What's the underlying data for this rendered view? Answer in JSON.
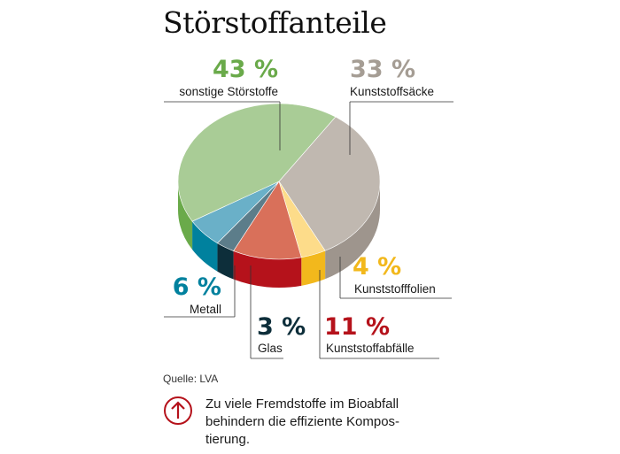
{
  "title": "Störstoffanteile",
  "source": "Quelle: LVA",
  "note": {
    "icon": "arrow-up-circle-icon",
    "text": "Zu viele Fremdstoffe im Bioabfall\nbehindern die effiziente Kompos-\ntierung."
  },
  "chart_data": {
    "type": "pie",
    "title": "Störstoffanteile",
    "slices": [
      {
        "label": "Kunststoffsäcke",
        "value": 33,
        "value_label": "33 %",
        "color": "#c0b8b0",
        "side_color": "#9e958d",
        "text_color": "#a59d94"
      },
      {
        "label": "Kunststofffolien",
        "value": 4,
        "value_label": "4 %",
        "color": "#fddc8a",
        "side_color": "#f2b81c",
        "text_color": "#f2b81c"
      },
      {
        "label": "Kunststoffabfälle",
        "value": 11,
        "value_label": "11 %",
        "color": "#d9705a",
        "side_color": "#b5121b",
        "text_color": "#b5121b"
      },
      {
        "label": "Glas",
        "value": 3,
        "value_label": "3 %",
        "color": "#5c7d8a",
        "side_color": "#0d2e3a",
        "text_color": "#0d2e3a"
      },
      {
        "label": "Metall",
        "value": 6,
        "value_label": "6 %",
        "color": "#6ab0c8",
        "side_color": "#00819e",
        "text_color": "#00819e"
      },
      {
        "label": "sonstige Störstoffe",
        "value": 43,
        "value_label": "43 %",
        "color": "#a9cc96",
        "side_color": "#6aaa4a",
        "text_color": "#6aaa4a"
      }
    ]
  }
}
